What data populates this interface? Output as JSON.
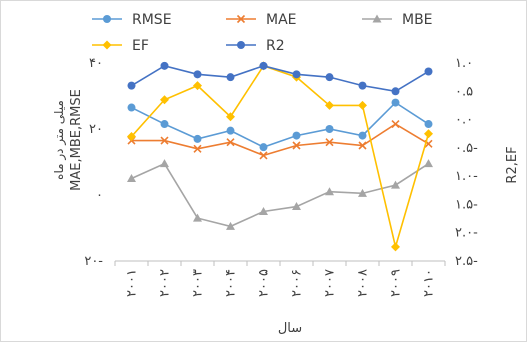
{
  "chart_data": {
    "type": "line",
    "title": "",
    "xlabel": "سال",
    "ylabel_left": "MAE,MBE,RMSE",
    "ylabel_left_sub": "میلی متر در ماه",
    "ylabel_right": "R2,EF",
    "categories": [
      "۲۰۰۱",
      "۲۰۰۲",
      "۲۰۰۳",
      "۲۰۰۴",
      "۲۰۰۵",
      "۲۰۰۶",
      "۲۰۰۷",
      "۲۰۰۸",
      "۲۰۰۹",
      "۲۰۱۰"
    ],
    "y_left": {
      "ylim": [
        -20,
        40
      ],
      "ticks": [
        -20,
        0,
        20,
        40
      ],
      "tick_labels": [
        "۲۰-",
        "۰",
        "۲۰",
        "۴۰"
      ]
    },
    "y_right": {
      "ylim": [
        -2.5,
        1.0
      ],
      "ticks": [
        1.0,
        0.5,
        0.0,
        -0.5,
        -1.0,
        -1.5,
        -2.0,
        -2.5
      ],
      "tick_labels": [
        "۱.۰",
        "۰.۵",
        "۰.۰",
        "۰.۵-",
        "۱.۰-",
        "۱.۵-",
        "۲.۰-",
        "۲.۵-"
      ]
    },
    "series": [
      {
        "name": "RMSE",
        "axis": "left",
        "color": "#5b9bd5",
        "marker": "circle",
        "values": [
          26.5,
          21.5,
          17.0,
          19.5,
          14.5,
          18.0,
          20.0,
          18.0,
          28.0,
          21.5
        ]
      },
      {
        "name": "MAE",
        "axis": "left",
        "color": "#ed7d31",
        "marker": "x",
        "values": [
          16.5,
          16.5,
          14.0,
          16.0,
          12.0,
          15.0,
          16.0,
          15.0,
          21.5,
          15.5
        ]
      },
      {
        "name": "MBE",
        "axis": "left",
        "color": "#a5a5a5",
        "marker": "triangle",
        "values": [
          5.0,
          9.5,
          -7.0,
          -9.5,
          -5.0,
          -3.5,
          1.0,
          0.5,
          3.0,
          9.5
        ]
      },
      {
        "name": "EF",
        "axis": "right",
        "color": "#ffc000",
        "marker": "diamond",
        "values": [
          -0.3,
          0.35,
          0.6,
          0.05,
          0.95,
          0.75,
          0.25,
          0.25,
          -2.25,
          -0.25
        ]
      },
      {
        "name": "R2",
        "axis": "right",
        "color": "#4472c4",
        "marker": "circle",
        "values": [
          0.6,
          0.95,
          0.8,
          0.75,
          0.95,
          0.8,
          0.75,
          0.6,
          0.5,
          0.85
        ]
      }
    ],
    "legend": {
      "placement": "top",
      "rows": [
        [
          {
            "series": "RMSE"
          },
          {
            "series": "MAE"
          },
          {
            "series": "MBE"
          }
        ],
        [
          {
            "series": "EF"
          },
          {
            "series": "R2"
          }
        ]
      ]
    },
    "grid": false
  }
}
